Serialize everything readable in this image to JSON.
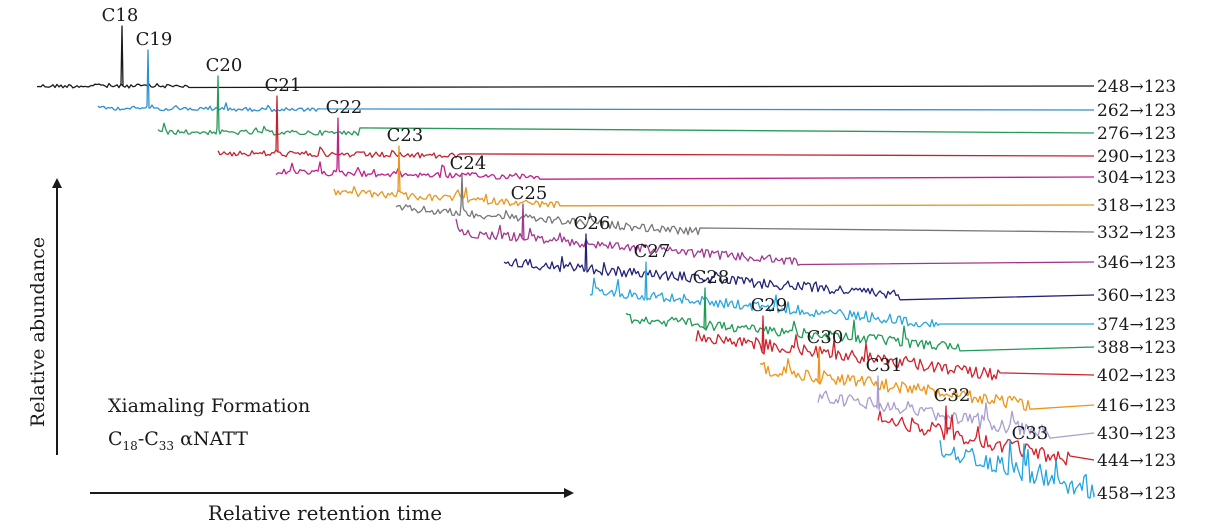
{
  "chart_data": {
    "type": "line",
    "title": "",
    "xlabel": "Relative retention time",
    "ylabel": "Relative abundance",
    "grid": false,
    "annotation": {
      "line1": "Xiamaling Formation",
      "line2_a": "C",
      "line2_b": "18",
      "line2_c": "-C",
      "line2_d": "33",
      "line2_e": " αNATT"
    },
    "series": [
      {
        "name": "C18",
        "transition": "248→123",
        "color": "#1a1a1a"
      },
      {
        "name": "C19",
        "transition": "262→123",
        "color": "#2f8fcf"
      },
      {
        "name": "C20",
        "transition": "276→123",
        "color": "#2a9a5a"
      },
      {
        "name": "C21",
        "transition": "290→123",
        "color": "#c4222f"
      },
      {
        "name": "C22",
        "transition": "304→123",
        "color": "#c0208a"
      },
      {
        "name": "C23",
        "transition": "318→123",
        "color": "#e8961e"
      },
      {
        "name": "C24",
        "transition": "332→123",
        "color": "#777777"
      },
      {
        "name": "C25",
        "transition": "346→123",
        "color": "#a0378f"
      },
      {
        "name": "C26",
        "transition": "360→123",
        "color": "#22227a"
      },
      {
        "name": "C27",
        "transition": "374→123",
        "color": "#28a6dc"
      },
      {
        "name": "C28",
        "transition": "388→123",
        "color": "#1e9a55"
      },
      {
        "name": "C29",
        "transition": "402→123",
        "color": "#d0202c"
      },
      {
        "name": "C30",
        "transition": "416→123",
        "color": "#ee9418"
      },
      {
        "name": "C31",
        "transition": "430→123",
        "color": "#a99dd0"
      },
      {
        "name": "C32",
        "transition": "444→123",
        "color": "#d41e2a"
      },
      {
        "name": "C33",
        "transition": "458→123",
        "color": "#21a4e0"
      }
    ]
  }
}
